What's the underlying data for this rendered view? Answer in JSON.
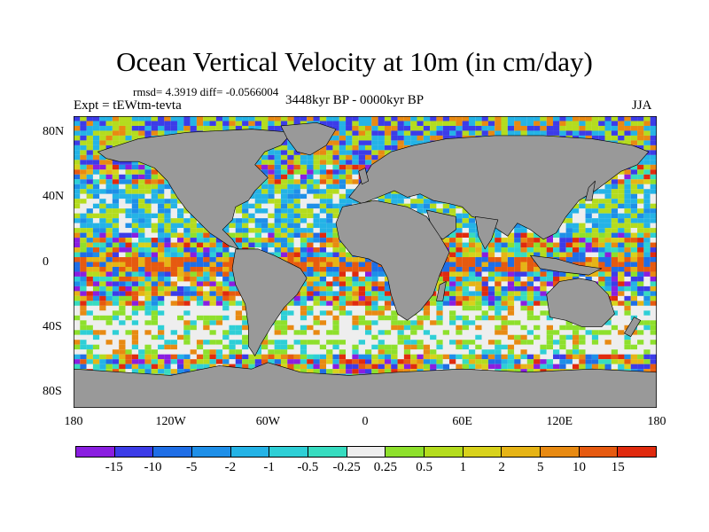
{
  "title": "Ocean Vertical Velocity at 10m (in cm/day)",
  "stats": "rmsd= 4.3919 diff= -0.0566004",
  "experiment": "Expt = tEWtm-tevta",
  "period": "3448kyr BP - 0000kyr BP",
  "season": "JJA",
  "map": {
    "projection": "cylindrical equidistant",
    "land_color": "#999999",
    "ocean_background": "#eeeeee",
    "y_ticks": [
      {
        "label": "80N",
        "lat": 80
      },
      {
        "label": "40N",
        "lat": 40
      },
      {
        "label": "0",
        "lat": 0
      },
      {
        "label": "40S",
        "lat": -40
      },
      {
        "label": "80S",
        "lat": -80
      }
    ],
    "x_ticks": [
      {
        "label": "180",
        "lon": -180
      },
      {
        "label": "120W",
        "lon": -120
      },
      {
        "label": "60W",
        "lon": -60
      },
      {
        "label": "0",
        "lon": 0
      },
      {
        "label": "60E",
        "lon": 60
      },
      {
        "label": "120E",
        "lon": 120
      },
      {
        "label": "180",
        "lon": 180
      }
    ]
  },
  "colorbar": {
    "labels": [
      "-15",
      "-10",
      "-5",
      "-2",
      "-1",
      "-0.5",
      "-0.25",
      "0.25",
      "0.5",
      "1",
      "2",
      "5",
      "10",
      "15"
    ],
    "colors": [
      "#8a1ee0",
      "#3c3ce8",
      "#1f6ee6",
      "#1e8fe8",
      "#24b3e6",
      "#2ecfd6",
      "#37dcc0",
      "#eeeeee",
      "#8ee02c",
      "#b4dc1e",
      "#d8d21c",
      "#e6b416",
      "#e88a12",
      "#e65a10",
      "#e02a0e"
    ]
  }
}
